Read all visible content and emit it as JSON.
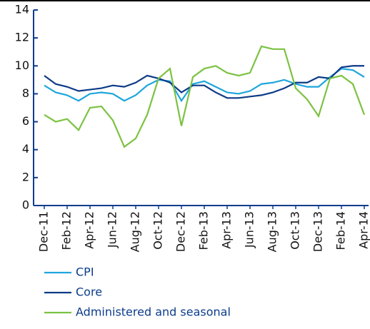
{
  "chart_data": {
    "type": "line",
    "categories": [
      "Dec-11",
      null,
      "Feb-12",
      null,
      "Apr-12",
      null,
      "Jun-12",
      null,
      "Aug-12",
      null,
      "Oct-12",
      null,
      "Dec-12",
      null,
      "Feb-13",
      null,
      "Apr-13",
      null,
      "Jun-13",
      null,
      "Aug-13",
      null,
      "Oct-13",
      null,
      "Dec-13",
      null,
      "Feb-14",
      null,
      "Apr-14"
    ],
    "series": [
      {
        "name": "CPI",
        "color": "#1ea5dd",
        "values": [
          8.6,
          8.1,
          7.9,
          7.5,
          8.0,
          8.1,
          8.0,
          7.5,
          7.9,
          8.6,
          9.0,
          8.9,
          7.5,
          8.7,
          8.9,
          8.5,
          8.1,
          8.0,
          8.2,
          8.7,
          8.8,
          9.0,
          8.7,
          8.5,
          8.5,
          9.2,
          9.8,
          9.7,
          9.2
        ]
      },
      {
        "name": "Core",
        "color": "#0d3a87",
        "values": [
          9.3,
          8.7,
          8.5,
          8.2,
          8.3,
          8.4,
          8.6,
          8.5,
          8.8,
          9.3,
          9.1,
          8.8,
          8.1,
          8.6,
          8.6,
          8.1,
          7.7,
          7.7,
          7.8,
          7.9,
          8.1,
          8.4,
          8.8,
          8.8,
          9.2,
          9.1,
          9.9,
          10.0,
          10.0
        ]
      },
      {
        "name": "Administered and seasonal",
        "color": "#7cc242",
        "values": [
          6.5,
          6.0,
          6.2,
          5.4,
          7.0,
          7.1,
          6.1,
          4.2,
          4.8,
          6.5,
          9.1,
          9.8,
          5.7,
          9.2,
          9.8,
          10.0,
          9.5,
          9.3,
          9.5,
          11.4,
          11.2,
          11.2,
          8.4,
          7.6,
          6.4,
          9.1,
          9.3,
          8.7,
          6.5
        ]
      }
    ],
    "ylim": [
      0,
      14
    ],
    "yticks": [
      0,
      2,
      4,
      6,
      8,
      10,
      12,
      14
    ]
  }
}
